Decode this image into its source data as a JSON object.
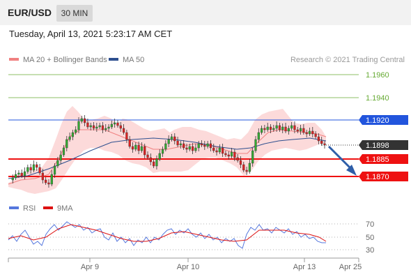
{
  "header": {
    "symbol": "EUR/USD",
    "timeframe": "30 MIN"
  },
  "timestamp": "Tuesday, April 13, 2021 5:23:17 AM CET",
  "legend": {
    "ma20_label": "MA 20 + Bollinger Bands",
    "ma50_label": "MA 50",
    "ma20_color": "#f08080",
    "ma50_color": "#2e4f8f"
  },
  "credit": "Research © 2021 Trading Central",
  "rsi_legend": {
    "rsi_label": "RSI",
    "ma_label": "9MA",
    "rsi_color": "#5577dd",
    "ma_color": "#dd1111"
  },
  "levels": [
    {
      "value": "1.1960",
      "type": "green",
      "color": "#66aa33"
    },
    {
      "value": "1.1940",
      "type": "green",
      "color": "#66aa33"
    },
    {
      "value": "1.1920",
      "type": "blue",
      "color": "#2255dd"
    },
    {
      "value": "1.1898",
      "type": "current",
      "color": "#333333"
    },
    {
      "value": "1.1885",
      "type": "red",
      "color": "#ee1111"
    },
    {
      "value": "1.1870",
      "type": "red",
      "color": "#ee1111"
    }
  ],
  "rsi_ticks": [
    "70",
    "50",
    "30"
  ],
  "x_ticks": [
    "Apr 9",
    "Apr 10",
    "Apr 13",
    "Apr 25"
  ]
}
